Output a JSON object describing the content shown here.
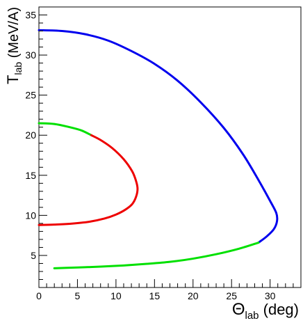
{
  "chart_data": {
    "type": "line",
    "title": "",
    "xlabel": {
      "symbol": "Θ",
      "sub": "lab",
      "rest": " (deg)"
    },
    "ylabel": {
      "symbol": "T",
      "sub": "lab",
      "rest": " (MeV/A)"
    },
    "xlim": [
      0,
      34
    ],
    "ylim": [
      1,
      36
    ],
    "x_major_ticks": [
      0,
      5,
      10,
      15,
      20,
      25,
      30
    ],
    "y_major_ticks": [
      5,
      10,
      15,
      20,
      25,
      30,
      35
    ],
    "grid": false,
    "legend": "none",
    "series": [
      {
        "color": "#00e000",
        "points": [
          [
            0,
            21.5
          ],
          [
            2,
            21.4
          ],
          [
            4,
            21.0
          ],
          [
            5.5,
            20.6
          ],
          [
            6.8,
            20.0
          ]
        ]
      },
      {
        "color": "#ee0000",
        "points": [
          [
            6.8,
            20.0
          ],
          [
            8,
            19.4
          ],
          [
            9.5,
            18.4
          ],
          [
            11,
            17.0
          ],
          [
            12.1,
            15.5
          ],
          [
            12.6,
            14.3
          ],
          [
            12.8,
            13.3
          ],
          [
            12.6,
            12.3
          ],
          [
            12.1,
            11.4
          ],
          [
            11.2,
            10.7
          ],
          [
            10,
            10.1
          ],
          [
            8.5,
            9.6
          ],
          [
            6.5,
            9.2
          ],
          [
            4,
            8.95
          ],
          [
            2,
            8.85
          ],
          [
            0,
            8.8
          ]
        ]
      },
      {
        "color": "#0000ee",
        "points": [
          [
            0,
            33.1
          ],
          [
            3,
            33.0
          ],
          [
            6,
            32.6
          ],
          [
            9,
            31.8
          ],
          [
            12,
            30.5
          ],
          [
            15,
            28.9
          ],
          [
            18,
            26.8
          ],
          [
            21,
            24.1
          ],
          [
            24,
            20.9
          ],
          [
            26.5,
            17.6
          ],
          [
            28.5,
            14.4
          ],
          [
            30,
            11.8
          ],
          [
            30.8,
            10.3
          ],
          [
            30.9,
            9.3
          ],
          [
            30.5,
            8.3
          ],
          [
            29.6,
            7.4
          ],
          [
            28.5,
            6.6
          ]
        ]
      },
      {
        "color": "#00e000",
        "points": [
          [
            28.5,
            6.6
          ],
          [
            26,
            5.85
          ],
          [
            23,
            5.15
          ],
          [
            20,
            4.6
          ],
          [
            17,
            4.2
          ],
          [
            14,
            3.95
          ],
          [
            11,
            3.75
          ],
          [
            8,
            3.6
          ],
          [
            5,
            3.5
          ],
          [
            2,
            3.4
          ]
        ]
      }
    ]
  }
}
